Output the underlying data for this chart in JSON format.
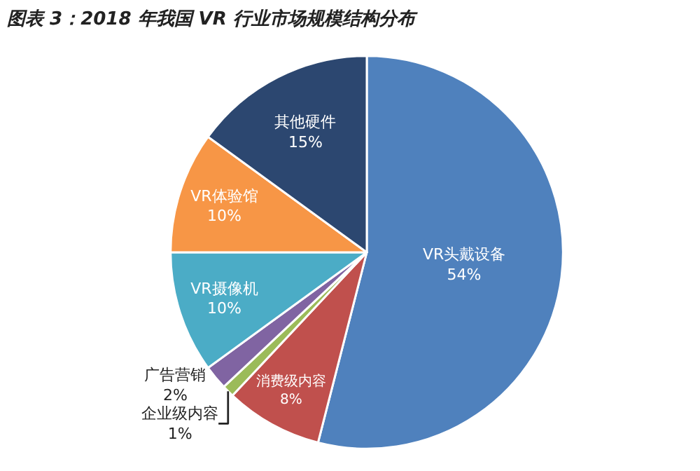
{
  "chart_data": {
    "type": "pie",
    "title": "图表 3：2018 年我国 VR 行业市场规模结构分布",
    "categories": [
      "VR头戴设备",
      "消费级内容",
      "企业级内容",
      "广告营销",
      "VR摄像机",
      "VR体验馆",
      "其他硬件"
    ],
    "values": [
      54,
      8,
      1,
      2,
      10,
      10,
      15
    ],
    "value_labels": [
      "54%",
      "8%",
      "1%",
      "2%",
      "10%",
      "10%",
      "15%"
    ],
    "colors": [
      "#4f81bd",
      "#c0504d",
      "#9bbb59",
      "#8064a2",
      "#4bacc6",
      "#f79646",
      "#2c4770"
    ],
    "legend": false
  }
}
